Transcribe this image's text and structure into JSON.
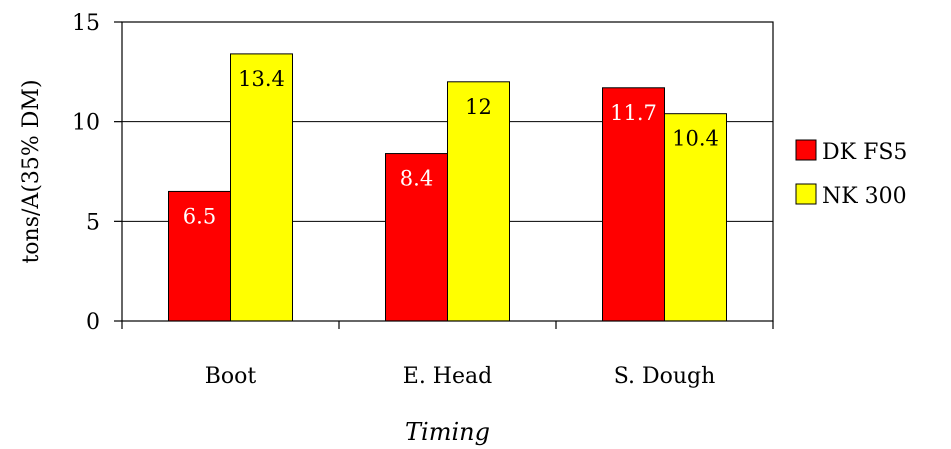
{
  "chart_data": {
    "type": "bar",
    "categories": [
      "Boot",
      "E. Head",
      "S. Dough"
    ],
    "series": [
      {
        "name": "DK FS5",
        "values": [
          6.5,
          8.4,
          11.7
        ],
        "color": "#ff0000",
        "label_color": "#ffffff"
      },
      {
        "name": "NK 300",
        "values": [
          13.4,
          12,
          10.4
        ],
        "color": "#ffff00",
        "label_color": "#000000"
      }
    ],
    "data_labels": [
      [
        "6.5",
        "8.4",
        "11.7"
      ],
      [
        "13.4",
        "12",
        "10.4"
      ]
    ],
    "xlabel": "Timing",
    "ylabel": "tons/A(35% DM)",
    "ylim": [
      0,
      15
    ],
    "yticks": [
      0,
      5,
      10,
      15
    ],
    "grid": true,
    "legend_position": "right"
  }
}
